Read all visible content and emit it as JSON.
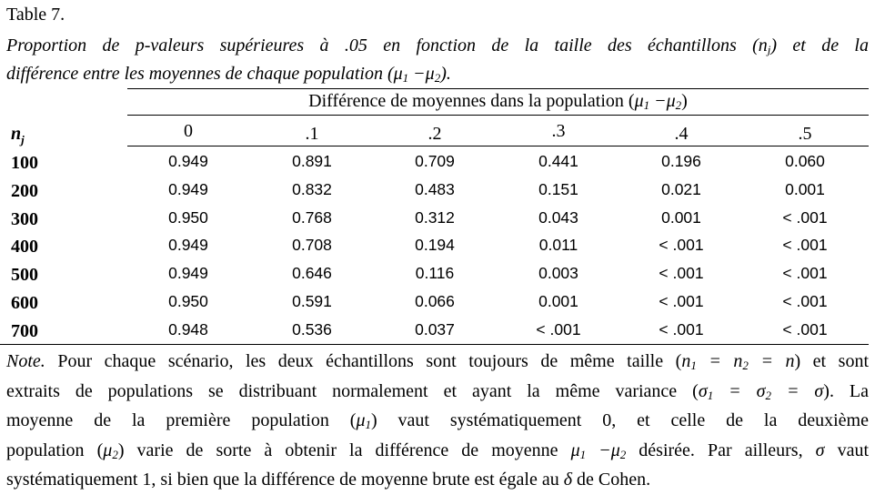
{
  "table_label": "Table 7.",
  "caption": {
    "line1": "Proportion de p-valeurs supérieures à .05 en fonction de la taille des échantillons (n",
    "line1_sub": "j",
    "line1_tail": ") et de la",
    "line2": "différence entre les moyennes de chaque population (μ",
    "line2_sub1": "1",
    "line2_mid": " −μ",
    "line2_sub2": "2",
    "line2_tail": ")."
  },
  "table": {
    "spanner": "Différence de moyennes dans la population (μ1 −μ2)",
    "row_header": "n",
    "row_header_sub": "j",
    "columns": [
      "0",
      ".1",
      ".2",
      ".3",
      ".4",
      ".5"
    ],
    "rows": [
      {
        "n": "100",
        "values": [
          "0.949",
          "0.891",
          "0.709",
          "0.441",
          "0.196",
          "0.060"
        ]
      },
      {
        "n": "200",
        "values": [
          "0.949",
          "0.832",
          "0.483",
          "0.151",
          "0.021",
          "0.001"
        ]
      },
      {
        "n": "300",
        "values": [
          "0.950",
          "0.768",
          "0.312",
          "0.043",
          "0.001",
          "< .001"
        ]
      },
      {
        "n": "400",
        "values": [
          "0.949",
          "0.708",
          "0.194",
          "0.011",
          "< .001",
          "< .001"
        ]
      },
      {
        "n": "500",
        "values": [
          "0.949",
          "0.646",
          "0.116",
          "0.003",
          "< .001",
          "< .001"
        ]
      },
      {
        "n": "600",
        "values": [
          "0.950",
          "0.591",
          "0.066",
          "0.001",
          "< .001",
          "< .001"
        ]
      },
      {
        "n": "700",
        "values": [
          "0.948",
          "0.536",
          "0.037",
          "< .001",
          "< .001",
          "< .001"
        ]
      }
    ]
  },
  "note": {
    "lead": "Note.",
    "l1a": " Pour chaque scénario, les deux échantillons sont toujours de même taille (",
    "l1b": ") et sont",
    "l1_eq": "n1 = n2 = n",
    "l2a": "extraits de populations se distribuant normalement et ayant la même variance (",
    "l2_eq": "σ1 = σ2 = σ",
    "l2b": "). La",
    "l3a": "moyenne de la première population (",
    "l3_mu": "μ1",
    "l3b": ") vaut systématiquement 0, et celle de la deuxième",
    "l4a": "population (",
    "l4_mu": "μ2",
    "l4b": ") varie de sorte à obtenir la différence de moyenne ",
    "l4_diff": "μ1 −μ2",
    "l4c": " désirée. Par ailleurs, ",
    "l4_sigma": "σ",
    "l4d": " vaut",
    "l5a": "systématiquement 1, si bien que la différence de moyenne brute est égale au ",
    "l5_delta": "δ",
    "l5b": " de Cohen."
  }
}
